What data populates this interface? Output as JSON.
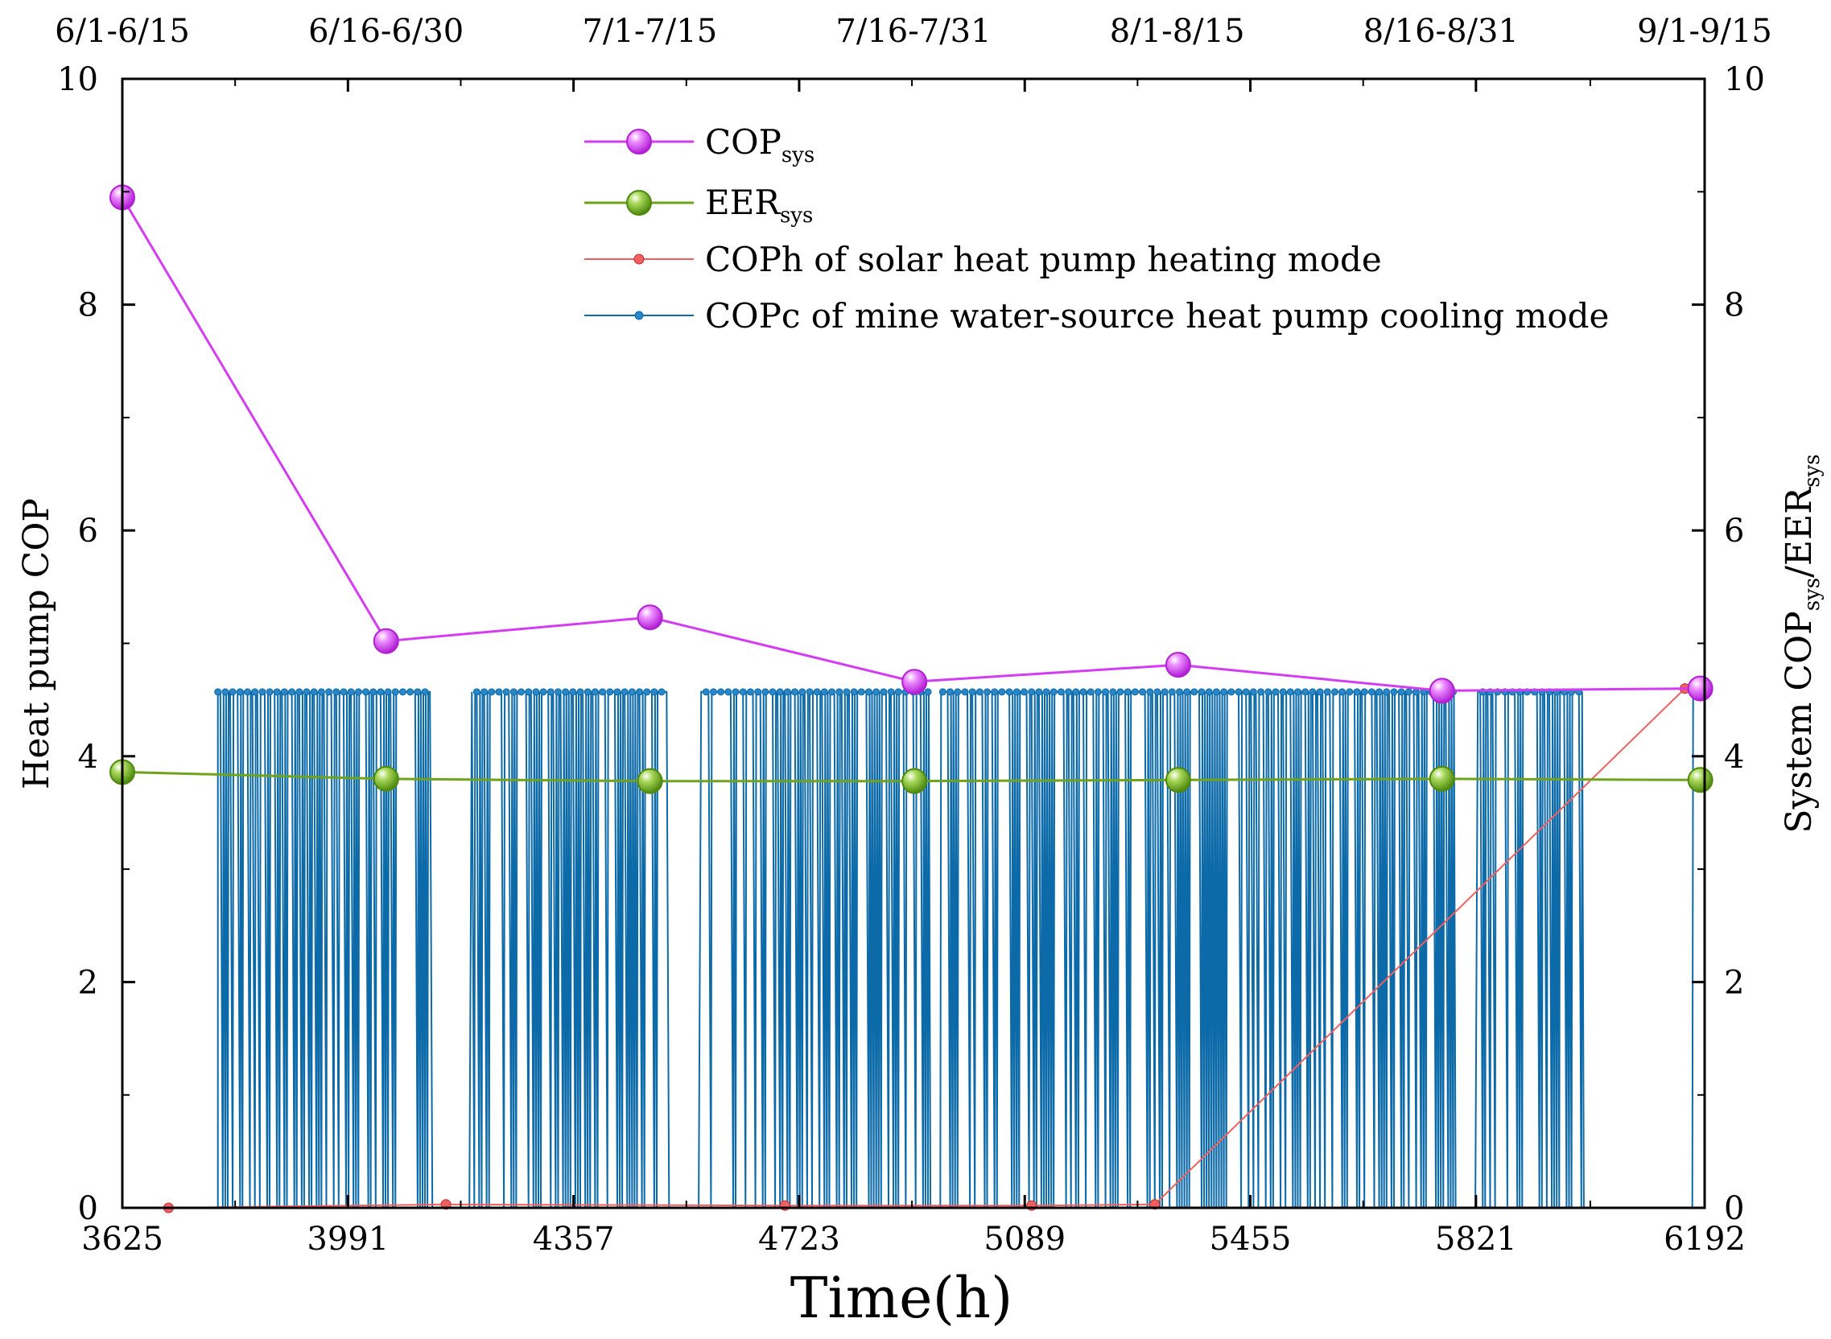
{
  "chart_data": {
    "type": "line",
    "xlabel": "Time(h)",
    "ylabel_left": "Heat pump COP",
    "ylabel_right": {
      "main": "System COP",
      "sub1": "sys",
      "sep": "/EER",
      "sub2": "sys"
    },
    "xlim": [
      3625,
      6192
    ],
    "ylim_left": [
      0,
      10
    ],
    "ylim_right": [
      0,
      10
    ],
    "x_ticks": [
      "3625",
      "3991",
      "4357",
      "4723",
      "5089",
      "5455",
      "5821",
      "6192"
    ],
    "y_ticks_left": [
      "0",
      "2",
      "4",
      "6",
      "8",
      "10"
    ],
    "y_ticks_right": [
      "0",
      "2",
      "4",
      "6",
      "8",
      "10"
    ],
    "top_ticks": [
      "6/1-6/15",
      "6/16-6/30",
      "7/1-7/15",
      "7/16-7/31",
      "8/1-8/15",
      "8/16-8/31",
      "9/1-9/15"
    ],
    "grid": false,
    "legend_position": "top-center",
    "series": [
      {
        "name": "COPsys",
        "label_main": "COP",
        "label_sub": "sys",
        "axis": "right",
        "color": "#d33cf0",
        "marker": "sphere",
        "x": [
          3625,
          4053,
          4481,
          4910,
          5338,
          5766,
          6185
        ],
        "y": [
          8.95,
          5.02,
          5.23,
          4.66,
          4.81,
          4.58,
          4.6
        ]
      },
      {
        "name": "EERsys",
        "label_main": "EER",
        "label_sub": "sys",
        "axis": "right",
        "color": "#6ea31b",
        "marker": "sphere",
        "x": [
          3625,
          4053,
          4481,
          4910,
          5338,
          5766,
          6185
        ],
        "y": [
          3.86,
          3.8,
          3.78,
          3.78,
          3.79,
          3.8,
          3.79
        ]
      },
      {
        "name": "COPh of solar heat pump heating mode",
        "axis": "left",
        "color": "#f06060",
        "marker": "dot",
        "x": [
          3700,
          4150,
          4700,
          5100,
          5300,
          6160,
          6185
        ],
        "y": [
          0,
          0.03,
          0.02,
          0.02,
          0.03,
          4.6,
          4.65
        ]
      },
      {
        "name": "COPc of mine water-source heat pump cooling mode",
        "axis": "left",
        "color": "#0c6aa8",
        "marker": "dot",
        "on_value": 4.57,
        "off_value": 0,
        "start": 3780,
        "gaps": [
          [
            4127,
            4190
          ],
          [
            4510,
            4560
          ],
          [
            4935,
            4948
          ],
          [
            5786,
            5822
          ],
          [
            5995,
            6170
          ]
        ]
      }
    ]
  }
}
